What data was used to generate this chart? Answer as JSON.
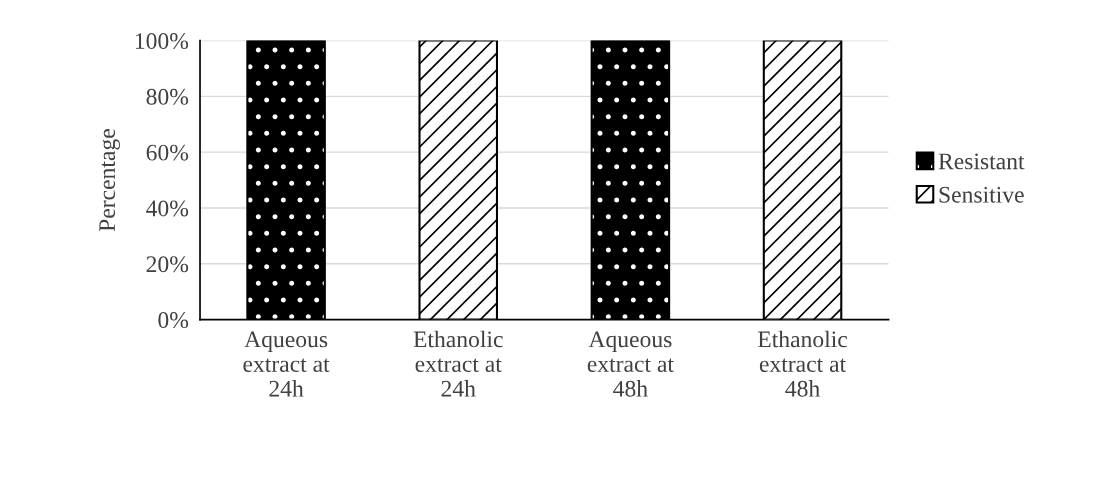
{
  "chart_data": {
    "type": "bar",
    "stacked": true,
    "ylabel": "Percentage",
    "categories": [
      "Aqueous\nextract at\n24h",
      "Ethanolic\nextract at\n24h",
      "Aqueous\nextract at\n48h",
      "Ethanolic\nextract at\n48h"
    ],
    "series": [
      {
        "name": "Resistant",
        "color": "#000000",
        "values": [
          100,
          0,
          100,
          0
        ]
      },
      {
        "name": "Sensitive",
        "color": "#000000",
        "values": [
          0,
          100,
          0,
          100
        ]
      }
    ],
    "ylim": [
      0,
      100
    ],
    "yticks": [
      {
        "value": 0,
        "label": "0%"
      },
      {
        "value": 20,
        "label": "20%"
      },
      {
        "value": 40,
        "label": "40%"
      },
      {
        "value": 60,
        "label": "60%"
      },
      {
        "value": 80,
        "label": "80%"
      },
      {
        "value": 100,
        "label": "100%"
      }
    ],
    "grid": "y",
    "legend": "right"
  }
}
